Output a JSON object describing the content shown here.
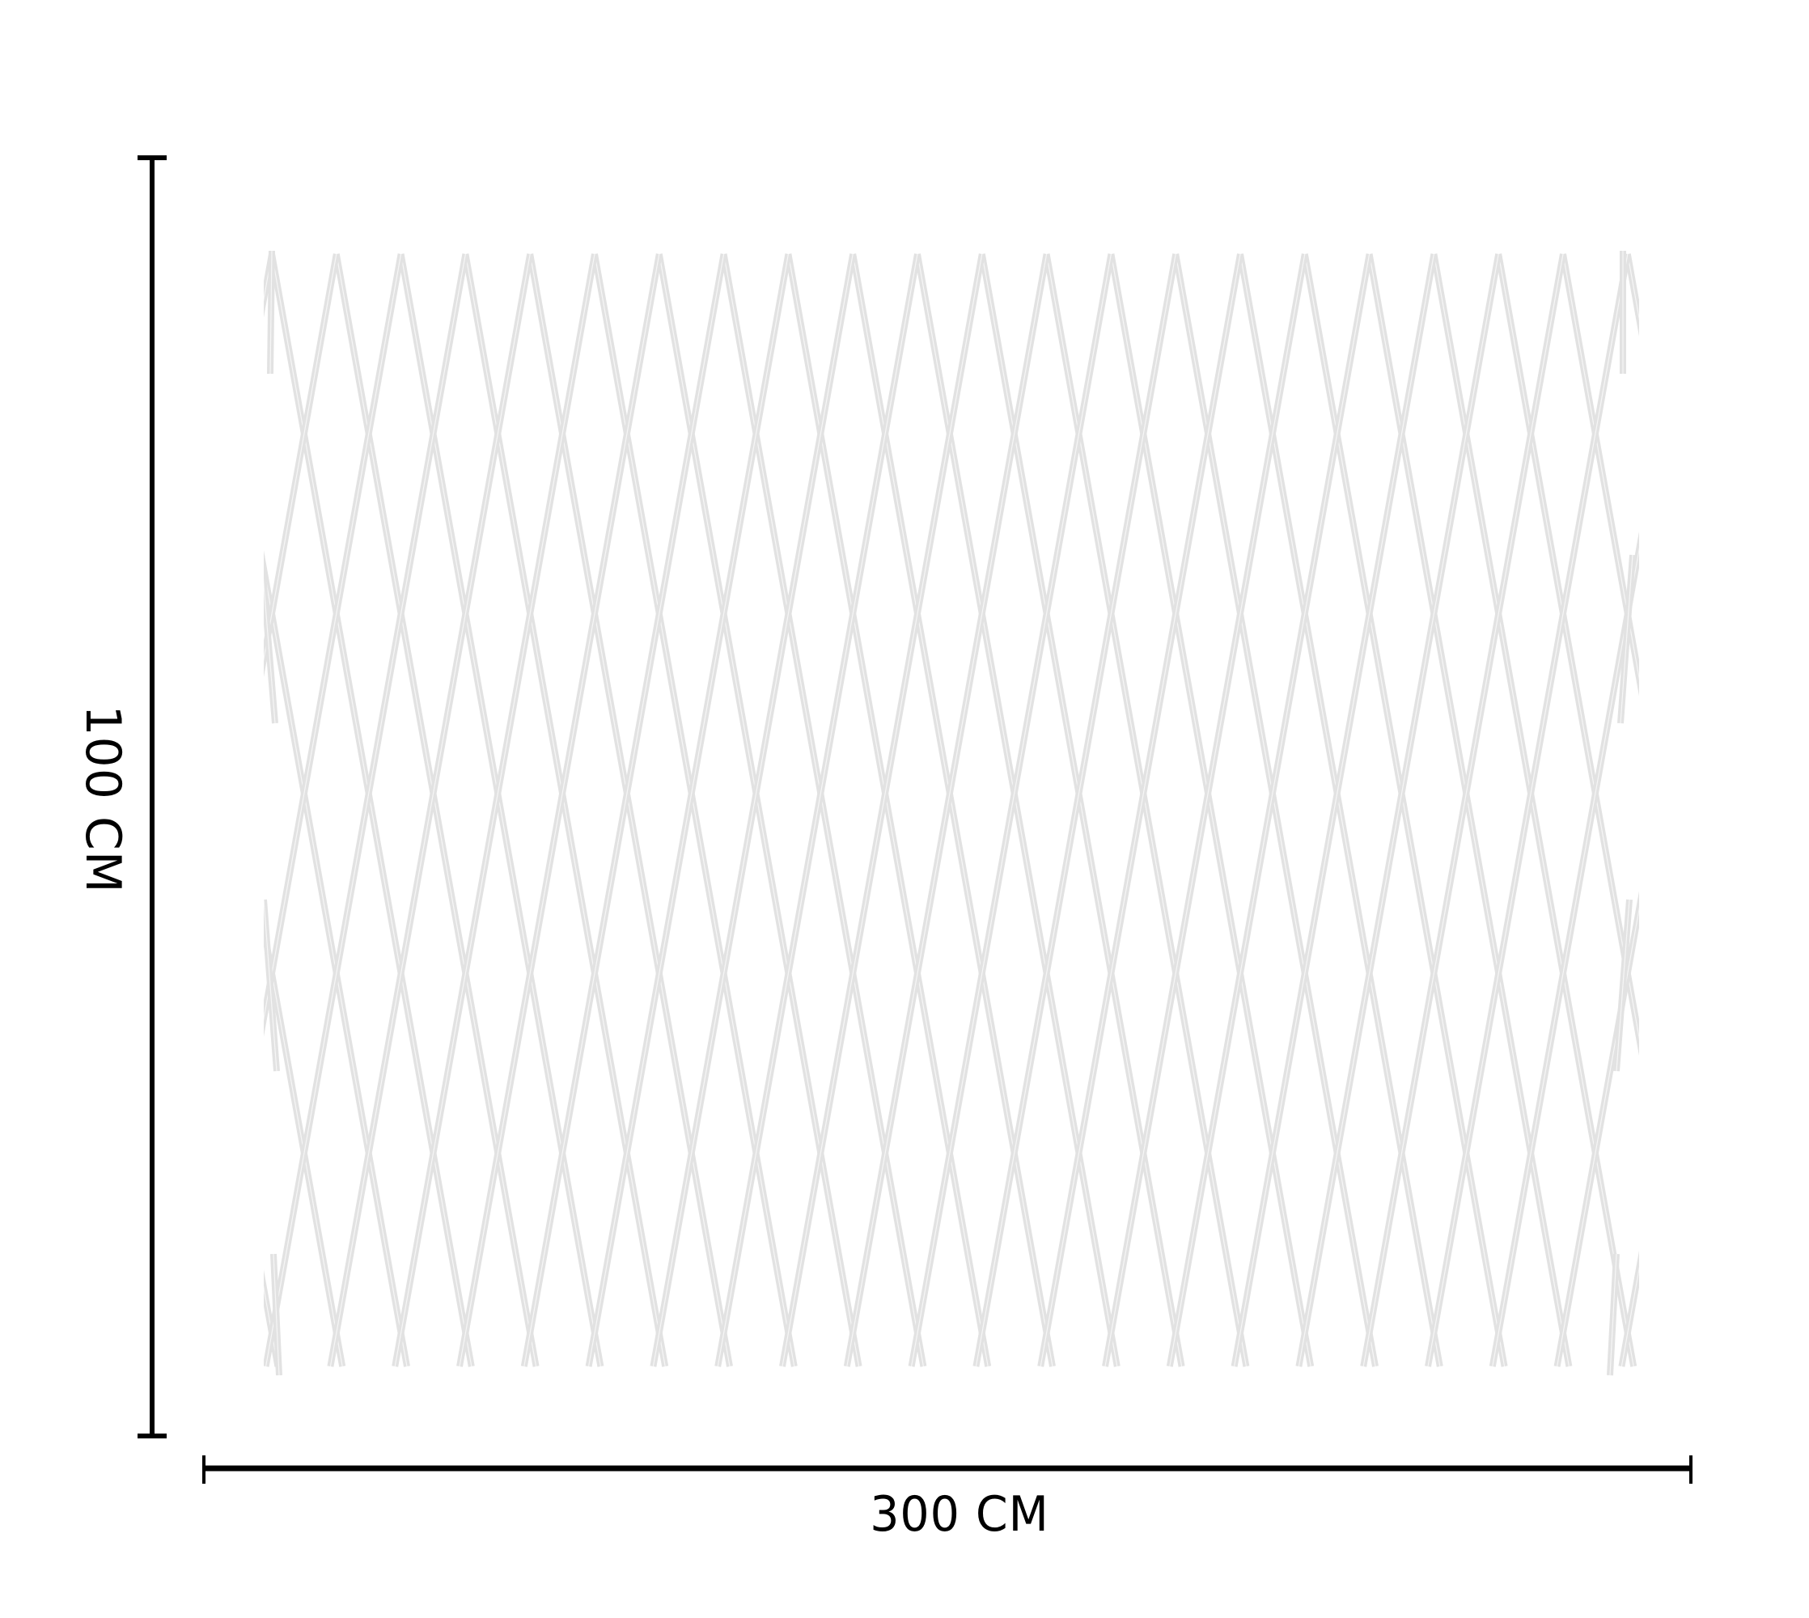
{
  "dimensions": {
    "width_label": "300 CM",
    "height_label": "100 CM"
  },
  "colors": {
    "lattice": "#e2e2e2",
    "dimension_lines": "#000000",
    "background": "#ffffff"
  }
}
